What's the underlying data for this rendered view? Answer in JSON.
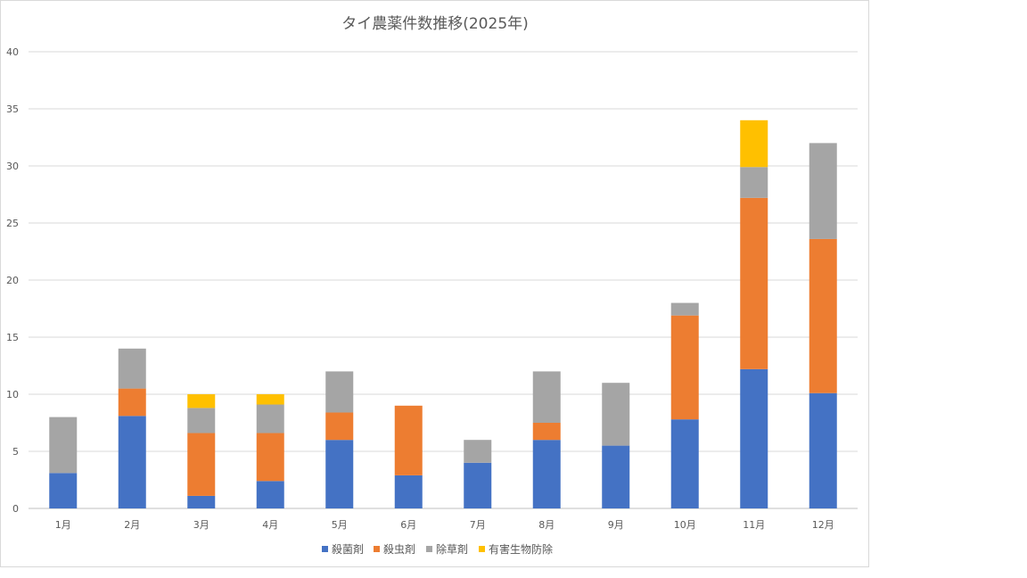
{
  "chart_data": {
    "type": "bar",
    "stacked": true,
    "title": "タイ農薬件数推移(2025年)",
    "xlabel": "",
    "ylabel": "",
    "ylim": [
      0,
      40
    ],
    "yticks": [
      0,
      5,
      10,
      15,
      20,
      25,
      30,
      35,
      40
    ],
    "grid": true,
    "legend_position": "bottom",
    "categories": [
      "1月",
      "2月",
      "3月",
      "4月",
      "5月",
      "6月",
      "7月",
      "8月",
      "9月",
      "10月",
      "11月",
      "12月"
    ],
    "series": [
      {
        "name": "殺菌剤",
        "color": "#4472c4",
        "values": [
          3.1,
          8.1,
          1.1,
          2.4,
          6,
          2.9,
          4,
          6,
          5.5,
          7.8,
          12.2,
          10.1
        ]
      },
      {
        "name": "殺虫剤",
        "color": "#ed7d31",
        "values": [
          0,
          2.4,
          5.5,
          4.2,
          2.4,
          6.1,
          0,
          1.5,
          0,
          9.1,
          15,
          13.5
        ]
      },
      {
        "name": "除草剤",
        "color": "#a5a5a5",
        "values": [
          4.9,
          3.5,
          2.2,
          2.5,
          3.6,
          0,
          2,
          4.5,
          5.5,
          1.1,
          2.7,
          8.4
        ]
      },
      {
        "name": "有害生物防除",
        "color": "#ffc000",
        "values": [
          0,
          0,
          1.2,
          0.9,
          0,
          0,
          0,
          0,
          0,
          0,
          4.1,
          0
        ]
      }
    ]
  }
}
